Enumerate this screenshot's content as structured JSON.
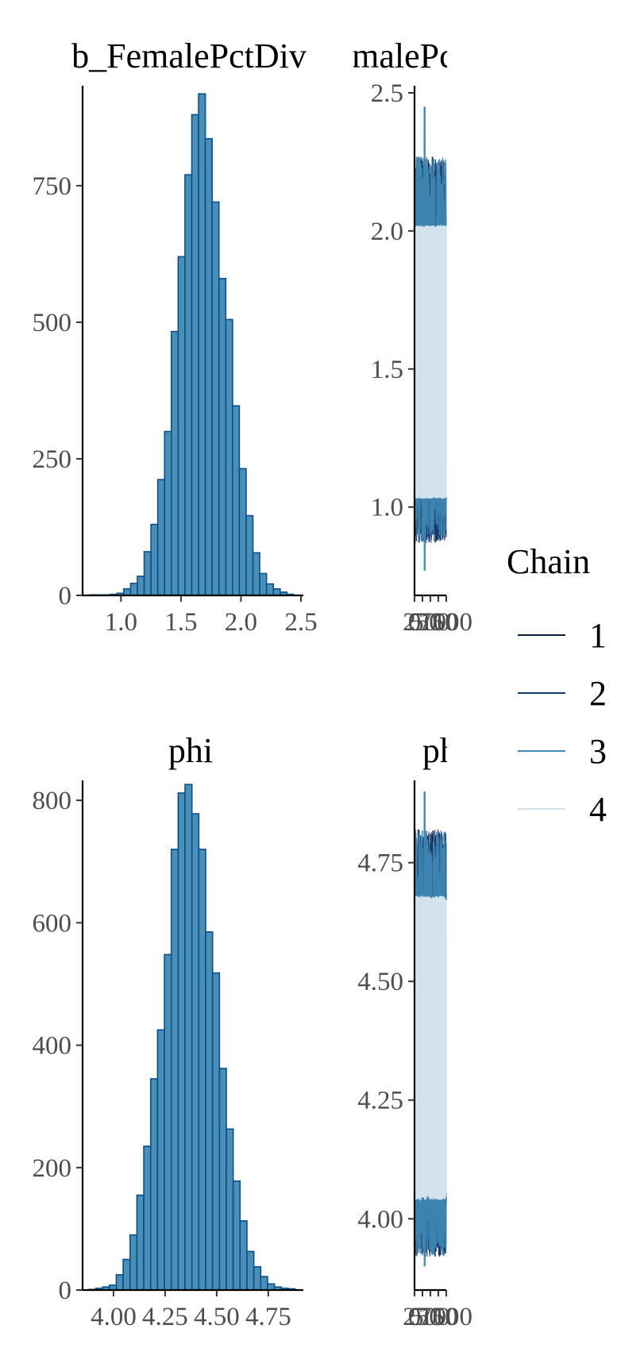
{
  "colors": {
    "bar_fill": "#4a8fb8",
    "bar_stroke": "#0b4f8a",
    "chain": [
      "#0b1f4d",
      "#123a6b",
      "#3f88b3",
      "#d3e3ee"
    ]
  },
  "legend": {
    "title": "Chain",
    "labels": [
      "1",
      "2",
      "3",
      "4"
    ]
  },
  "chart_data": [
    {
      "type": "bar",
      "panel": "histogram",
      "title": "b_FemalePctDiv",
      "xlim": [
        0.68,
        2.52
      ],
      "ylim": [
        0,
        930
      ],
      "x_ticks": [
        "1.0",
        "1.5",
        "2.0",
        "2.5"
      ],
      "x_tick_values": [
        1.0,
        1.5,
        2.0,
        2.5
      ],
      "y_ticks": [
        "0",
        "250",
        "500",
        "750"
      ],
      "y_tick_values": [
        0,
        250,
        500,
        750
      ],
      "bins": [
        0.74,
        2.44
      ],
      "counts": [
        1,
        1,
        1,
        2,
        4,
        12,
        22,
        35,
        80,
        130,
        212,
        300,
        483,
        620,
        770,
        880,
        918,
        836,
        720,
        580,
        505,
        347,
        232,
        146,
        78,
        40,
        21,
        12,
        6,
        2
      ]
    },
    {
      "type": "line",
      "panel": "trace",
      "title": "b_FemalePctDiv",
      "xlim": [
        0,
        1000
      ],
      "ylim": [
        0.68,
        2.52
      ],
      "x_ticks": [
        "0",
        "250",
        "500",
        "750",
        "1000"
      ],
      "x_tick_values": [
        0,
        250,
        500,
        750,
        1000
      ],
      "y_ticks": [
        "1.0",
        "1.5",
        "2.0",
        "2.5"
      ],
      "y_tick_values": [
        1.0,
        1.5,
        2.0,
        2.5
      ],
      "center": 1.55,
      "band_min": 1.03,
      "band_max": 2.02,
      "low_range": [
        0.87,
        1.12
      ],
      "high_range": [
        1.93,
        2.27
      ],
      "chain3_spike_high": 2.45,
      "chain3_spike_low": 0.77
    },
    {
      "type": "bar",
      "panel": "histogram",
      "title": "phi",
      "xlim": [
        3.85,
        4.92
      ],
      "ylim": [
        0,
        830
      ],
      "x_ticks": [
        "4.00",
        "4.25",
        "4.50",
        "4.75"
      ],
      "x_tick_values": [
        4.0,
        4.25,
        4.5,
        4.75
      ],
      "y_ticks": [
        "0",
        "200",
        "400",
        "600",
        "800"
      ],
      "y_tick_values": [
        0,
        200,
        400,
        600,
        800
      ],
      "bins": [
        3.88,
        4.88
      ],
      "counts": [
        1,
        3,
        5,
        8,
        25,
        50,
        90,
        155,
        235,
        345,
        425,
        548,
        720,
        812,
        826,
        778,
        720,
        585,
        518,
        362,
        263,
        178,
        113,
        63,
        38,
        22,
        10,
        5,
        3,
        2
      ]
    },
    {
      "type": "line",
      "panel": "trace",
      "title": "phi",
      "xlim": [
        0,
        1000
      ],
      "ylim": [
        3.85,
        4.92
      ],
      "x_ticks": [
        "0",
        "250",
        "500",
        "750",
        "1000"
      ],
      "x_tick_values": [
        0,
        250,
        500,
        750,
        1000
      ],
      "y_ticks": [
        "4.00",
        "4.25",
        "4.50",
        "4.75"
      ],
      "y_tick_values": [
        4.0,
        4.25,
        4.5,
        4.75
      ],
      "center": 4.36,
      "band_min": 4.04,
      "band_max": 4.68,
      "low_range": [
        3.92,
        4.06
      ],
      "high_range": [
        4.64,
        4.82
      ],
      "chain3_spike_high": 4.9,
      "chain3_spike_low": 3.9
    }
  ]
}
